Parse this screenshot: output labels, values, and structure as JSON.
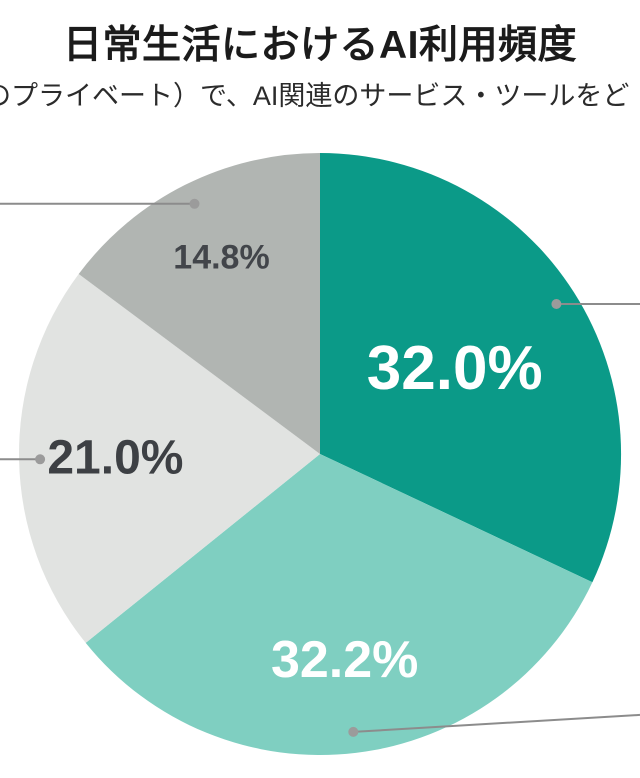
{
  "page": {
    "title": "日常生活におけるAI利用頻度",
    "subtitle_visible": "のプライベート）で、AI関連のサービス・ツールをど",
    "background_color": "#ffffff"
  },
  "chart_data": {
    "type": "pie",
    "title": "日常生活におけるAI利用頻度",
    "unit": "%",
    "direction": "clockwise",
    "start_angle_deg": 0,
    "legend_position": "none",
    "grid": "off",
    "callout": {
      "line_color": "#8c8c8c",
      "dot_color": "#9b9b9b",
      "labels_offscreen": true
    },
    "slices": [
      {
        "label": "32.0%",
        "value": 32.0,
        "color": "#0b9a88",
        "label_color": "#ffffff"
      },
      {
        "label": "32.2%",
        "value": 32.2,
        "color": "#7fcfc1",
        "label_color": "#ffffff"
      },
      {
        "label": "21.0%",
        "value": 21.0,
        "color": "#e1e3e1",
        "label_color": "#3d4044"
      },
      {
        "label": "14.8%",
        "value": 14.8,
        "color": "#b1b5b2",
        "label_color": "#42454a"
      }
    ]
  }
}
